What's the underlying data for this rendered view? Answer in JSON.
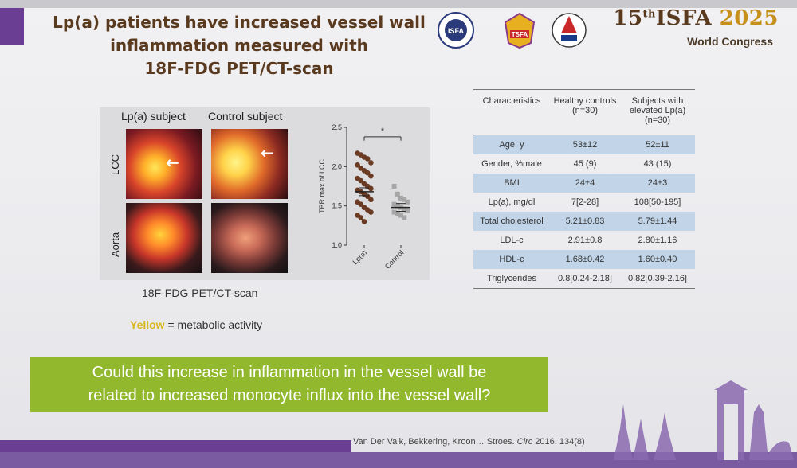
{
  "slide": {
    "title_line1": "Lp(a) patients have increased vessel wall",
    "title_line2": "inflammation measured with",
    "title_line3": "18F-FDG PET/CT-scan"
  },
  "conference": {
    "edition": "15",
    "edition_suffix": "th",
    "name": "ISFA",
    "year": "2025",
    "subtitle": "World Congress",
    "logo_isfa": "ISFA",
    "logo_tsfa": "TSFA"
  },
  "scans": {
    "col1_label": "Lp(a) subject",
    "col2_label": "Control subject",
    "row1_label": "LCC",
    "row2_label": "Aorta",
    "caption": "18F-FDG PET/CT-scan",
    "yellow_word": "Yellow",
    "yellow_rest": " = metabolic activity",
    "arrow_glyph": "←"
  },
  "chart_data": {
    "type": "scatter",
    "ylabel": "TBR max of LCC",
    "ylim": [
      1.0,
      2.5
    ],
    "yticks": [
      "1.0",
      "1.5",
      "2.0",
      "2.5"
    ],
    "categories": [
      "Lp(a)",
      "Control"
    ],
    "significance": "*",
    "series": [
      {
        "name": "Lp(a)",
        "color": "#6b3a22",
        "marker": "circle",
        "values": [
          2.17,
          2.15,
          2.12,
          2.1,
          2.05,
          2.02,
          1.98,
          1.95,
          1.92,
          1.88,
          1.85,
          1.82,
          1.78,
          1.75,
          1.72,
          1.7,
          1.68,
          1.65,
          1.62,
          1.58,
          1.55,
          1.52,
          1.48,
          1.45,
          1.42,
          1.38,
          1.35,
          1.3
        ],
        "mean": 1.68
      },
      {
        "name": "Control",
        "color": "#a6a6a6",
        "marker": "square",
        "values": [
          1.75,
          1.65,
          1.6,
          1.58,
          1.55,
          1.52,
          1.5,
          1.48,
          1.46,
          1.44,
          1.42,
          1.4,
          1.38,
          1.35
        ],
        "mean": 1.48
      }
    ]
  },
  "table": {
    "headers": [
      "Characteristics",
      "Healthy controls (n=30)",
      "Subjects with elevated Lp(a) (n=30)"
    ],
    "rows": [
      {
        "label": "Age, y",
        "healthy": "53±12",
        "elevated": "52±11",
        "shaded": true
      },
      {
        "label": "Gender, %male",
        "healthy": "45 (9)",
        "elevated": "43 (15)",
        "shaded": false
      },
      {
        "label": "BMI",
        "healthy": "24±4",
        "elevated": "24±3",
        "shaded": true
      },
      {
        "label": "Lp(a), mg/dl",
        "healthy": "7[2-28]",
        "elevated": "108[50-195]",
        "shaded": false
      },
      {
        "label": "Total cholesterol",
        "healthy": "5.21±0.83",
        "elevated": "5.79±1.44",
        "shaded": true
      },
      {
        "label": "LDL-c",
        "healthy": "2.91±0.8",
        "elevated": "2.80±1.16",
        "shaded": false
      },
      {
        "label": "HDL-c",
        "healthy": "1.68±0.42",
        "elevated": "1.60±0.40",
        "shaded": true
      },
      {
        "label": "Triglycerides",
        "healthy": "0.8[0.24-2.18]",
        "elevated": "0.82[0.39-2.16]",
        "shaded": false
      }
    ]
  },
  "question": {
    "line1": "Could this increase in inflammation in the vessel wall be",
    "line2": "related to increased monocyte influx into the vessel wall?"
  },
  "citation": {
    "authors": "Van Der Valk, Bekkering, Kroon… Stroes. ",
    "journal": "Circ",
    "ref": " 2016. 134(8)"
  }
}
